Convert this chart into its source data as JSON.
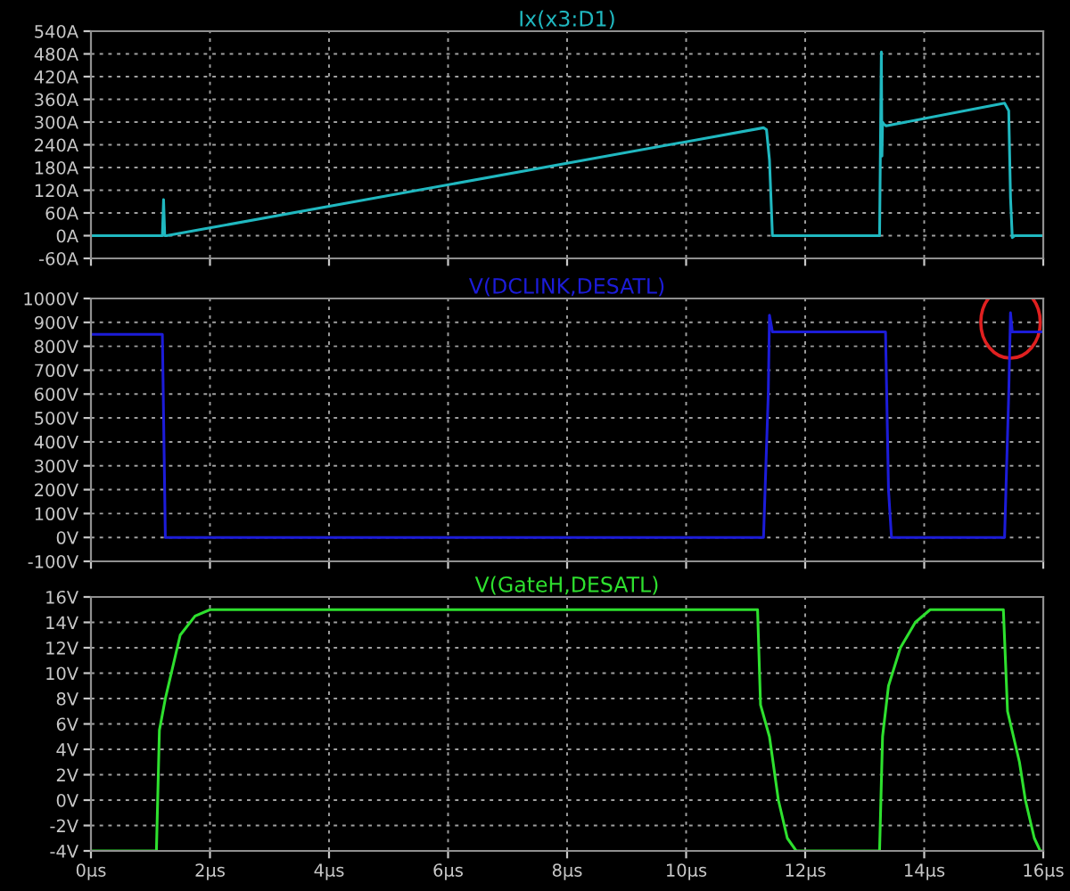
{
  "chart_data": [
    {
      "type": "line",
      "title": "Ix(x3:D1)",
      "xlim": [
        0,
        16
      ],
      "ylim": [
        -60,
        540
      ],
      "tick_labels": "y",
      "grid": true,
      "legend": false,
      "xticks": [
        0,
        2,
        4,
        6,
        8,
        10,
        12,
        14,
        16
      ],
      "yticks": [
        {
          "value": -60,
          "label": "-60A"
        },
        {
          "value": 0,
          "label": "0A"
        },
        {
          "value": 60,
          "label": "60A"
        },
        {
          "value": 120,
          "label": "120A"
        },
        {
          "value": 180,
          "label": "180A"
        },
        {
          "value": 240,
          "label": "240A"
        },
        {
          "value": 300,
          "label": "300A"
        },
        {
          "value": 360,
          "label": "360A"
        },
        {
          "value": 420,
          "label": "420A"
        },
        {
          "value": 480,
          "label": "480A"
        },
        {
          "value": 540,
          "label": "540A"
        }
      ],
      "series": [
        {
          "color": "#20b8c0",
          "x": [
            0,
            1.2,
            1.22,
            1.24,
            1.27,
            11.3,
            11.35,
            11.4,
            11.45,
            11.48,
            13.25,
            13.28,
            13.29,
            13.3,
            13.32,
            13.36,
            15.35,
            15.42,
            15.45,
            15.48,
            15.52,
            16
          ],
          "values": [
            0,
            0,
            95,
            0,
            0,
            285,
            280,
            200,
            0,
            0,
            0,
            485,
            210,
            300,
            295,
            290,
            350,
            330,
            100,
            -5,
            0,
            0
          ]
        }
      ]
    },
    {
      "type": "line",
      "title": "V(DCLINK,DESATL)",
      "xlim": [
        0,
        16
      ],
      "ylim": [
        -100,
        1000
      ],
      "tick_labels": "y",
      "grid": true,
      "legend": false,
      "xticks": [
        0,
        2,
        4,
        6,
        8,
        10,
        12,
        14,
        16
      ],
      "yticks": [
        {
          "value": -100,
          "label": "-100V"
        },
        {
          "value": 0,
          "label": "0V"
        },
        {
          "value": 100,
          "label": "100V"
        },
        {
          "value": 200,
          "label": "200V"
        },
        {
          "value": 300,
          "label": "300V"
        },
        {
          "value": 400,
          "label": "400V"
        },
        {
          "value": 500,
          "label": "500V"
        },
        {
          "value": 600,
          "label": "600V"
        },
        {
          "value": 700,
          "label": "700V"
        },
        {
          "value": 800,
          "label": "800V"
        },
        {
          "value": 900,
          "label": "900V"
        },
        {
          "value": 1000,
          "label": "1000V"
        }
      ],
      "series": [
        {
          "color": "#1c1cd8",
          "x": [
            0,
            1.2,
            1.25,
            11.3,
            11.38,
            11.4,
            11.45,
            13.35,
            13.4,
            13.45,
            15.35,
            15.42,
            15.45,
            15.48,
            16
          ],
          "values": [
            850,
            850,
            0,
            0,
            600,
            930,
            860,
            860,
            200,
            0,
            0,
            600,
            940,
            860,
            860
          ]
        }
      ]
    },
    {
      "type": "line",
      "title": "V(GateH,DESATL)",
      "xlim": [
        0,
        16
      ],
      "ylim": [
        -4,
        16
      ],
      "grid": true,
      "legend": false,
      "xticks": [
        {
          "value": 0,
          "label": "0µs"
        },
        {
          "value": 2,
          "label": "2µs"
        },
        {
          "value": 4,
          "label": "4µs"
        },
        {
          "value": 6,
          "label": "6µs"
        },
        {
          "value": 8,
          "label": "8µs"
        },
        {
          "value": 10,
          "label": "10µs"
        },
        {
          "value": 12,
          "label": "12µs"
        },
        {
          "value": 14,
          "label": "14µs"
        },
        {
          "value": 16,
          "label": "16µs"
        }
      ],
      "yticks": [
        {
          "value": -4,
          "label": "-4V"
        },
        {
          "value": -2,
          "label": "-2V"
        },
        {
          "value": 0,
          "label": "0V"
        },
        {
          "value": 2,
          "label": "2V"
        },
        {
          "value": 4,
          "label": "4V"
        },
        {
          "value": 6,
          "label": "6V"
        },
        {
          "value": 8,
          "label": "8V"
        },
        {
          "value": 10,
          "label": "10V"
        },
        {
          "value": 12,
          "label": "12V"
        },
        {
          "value": 14,
          "label": "14V"
        },
        {
          "value": 16,
          "label": "16V"
        }
      ],
      "series": [
        {
          "color": "#2ee02e",
          "x": [
            0,
            1.1,
            1.15,
            1.25,
            1.35,
            1.5,
            1.75,
            2.0,
            11.2,
            11.25,
            11.4,
            11.55,
            11.7,
            11.85,
            13.25,
            13.3,
            13.4,
            13.6,
            13.85,
            14.1,
            15.33,
            15.4,
            15.6,
            15.7,
            15.85,
            15.95,
            16
          ],
          "values": [
            -4,
            -4,
            5.5,
            8,
            10,
            13,
            14.5,
            15,
            15,
            7.5,
            5,
            0,
            -3,
            -4,
            -4,
            5,
            9,
            12,
            14,
            15,
            15,
            7,
            3,
            0,
            -3,
            -4,
            -4
          ]
        }
      ]
    }
  ]
}
